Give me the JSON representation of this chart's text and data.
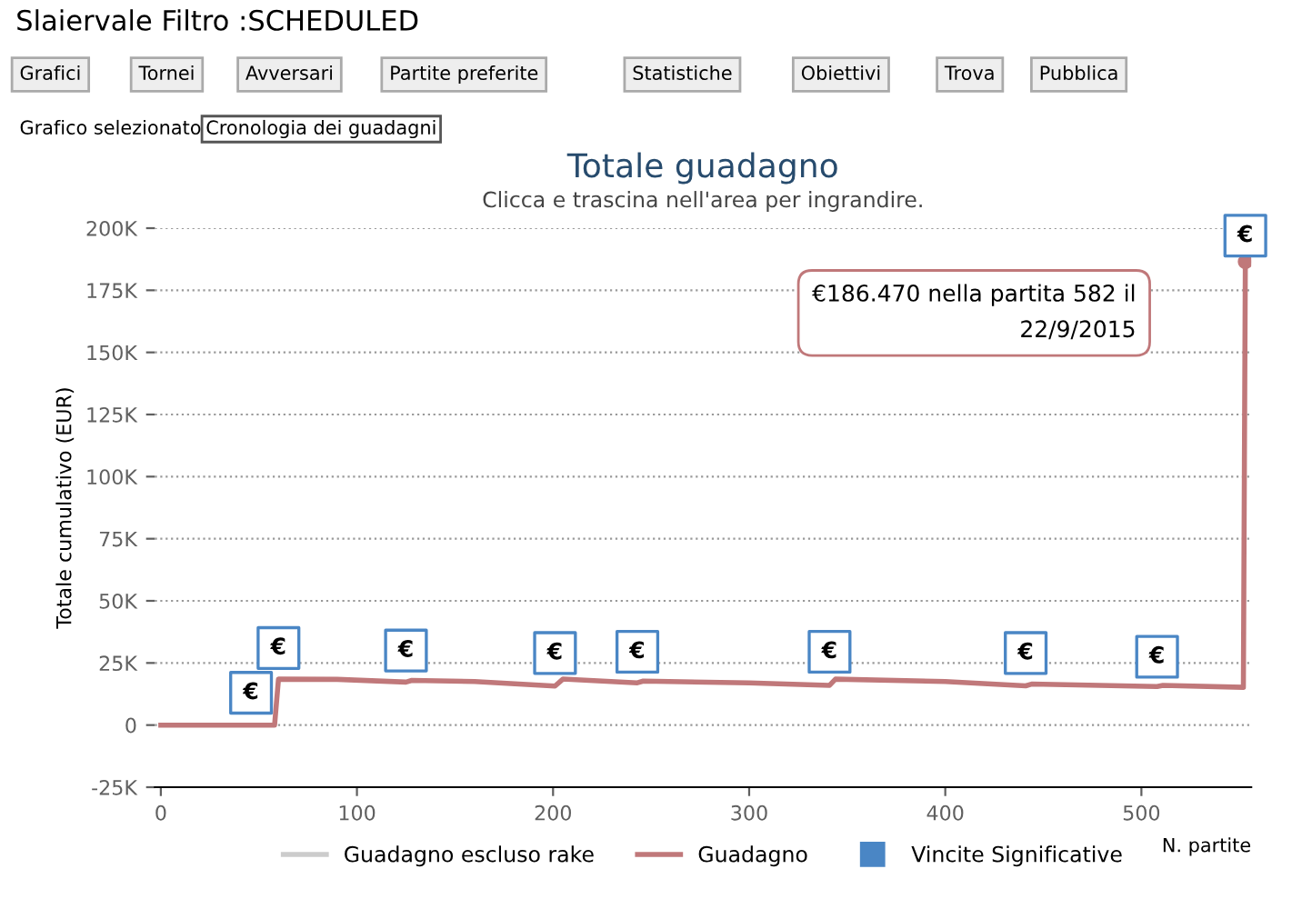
{
  "chart_data": {
    "type": "line",
    "title": "Totale guadagno",
    "subtitle": "Clicca e trascina nell'area per ingrandire.",
    "xlabel": "N. partite",
    "ylabel": "Totale cumulativo (EUR)",
    "series": [
      {
        "name": "Guadagno escluso rake",
        "color": "#cccccc"
      },
      {
        "name": "Guadagno",
        "color": "#c0787a",
        "x": [
          0,
          58,
          60,
          90,
          125,
          128,
          160,
          201,
          205,
          243,
          246,
          300,
          341,
          344,
          400,
          441,
          444,
          508,
          511,
          552,
          553
        ],
        "values": [
          0,
          0,
          18500,
          18400,
          17300,
          18000,
          17500,
          15700,
          18500,
          17000,
          17700,
          17000,
          16000,
          18500,
          17500,
          15800,
          16500,
          15500,
          16000,
          15200,
          186470
        ]
      },
      {
        "name": "Vincite Significative",
        "type": "scatter",
        "marker": "square",
        "color": "#4a86c5",
        "x": [
          46,
          60,
          125,
          201,
          243,
          341,
          441,
          508,
          553
        ],
        "values": [
          13000,
          31000,
          30000,
          29000,
          29500,
          29500,
          29000,
          27500,
          197000
        ],
        "value_labels": [
          "€",
          "€",
          "€",
          "€",
          "€",
          "€",
          "€",
          "€",
          "€"
        ]
      }
    ],
    "xlim": [
      -3,
      556
    ],
    "xticks": [
      0,
      100,
      200,
      300,
      400,
      500
    ],
    "ylim": [
      -25000,
      200000
    ],
    "yticks": [
      {
        "value": -25000,
        "label": "-25K"
      },
      0,
      {
        "value": 25000,
        "label": "25K"
      },
      {
        "value": 50000,
        "label": "50K"
      },
      {
        "value": 75000,
        "label": "75K"
      },
      {
        "value": 100000,
        "label": "100K"
      },
      {
        "value": 125000,
        "label": "125K"
      },
      {
        "value": 150000,
        "label": "150K"
      },
      {
        "value": 175000,
        "label": "175K"
      },
      {
        "value": 200000,
        "label": "200K"
      }
    ],
    "grid": "y",
    "legend": "bottom",
    "annotations": [
      "Slaiervale Filtro :SCHEDULED",
      "Grafici",
      "Tornei",
      "Avversari",
      "Partite preferite",
      "Statistiche",
      "Obiettivi",
      "Trova",
      "Pubblica",
      "Grafico selezionato",
      "Cronologia dei guadagni",
      "€186.470 nella partita 582 il\n22/9/2015"
    ]
  }
}
